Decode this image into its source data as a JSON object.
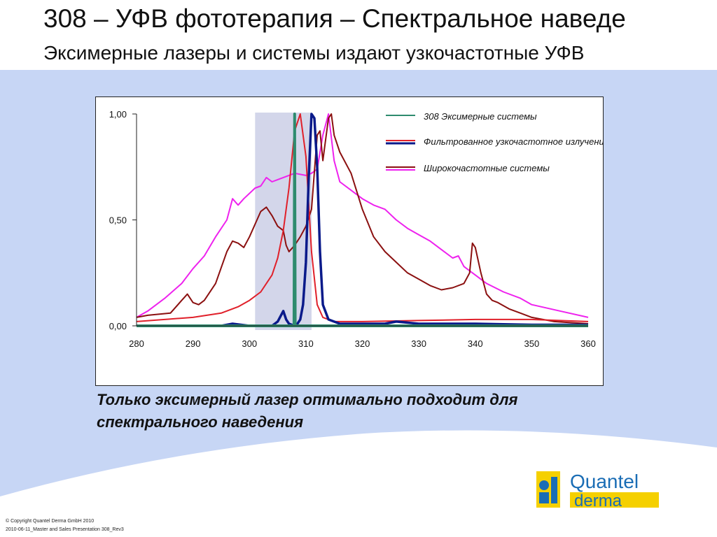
{
  "slide": {
    "title": "308 – УФВ фототерапия – Спектральное наведе",
    "subtitle": "Эксимерные лазеры и системы издают узкочастотные УФВ",
    "caption_line1": "Только эксимерный лазер оптимально подходит для",
    "caption_line2": "спектрального наведения",
    "copyright": "© Copyright Quantel Derma GmbH 2010",
    "footer_file": "2010-06-11_Master and Sales Presentation 308_Rev3",
    "logo_text_1": "Quantel",
    "logo_text_2": "derma"
  },
  "colors": {
    "background_panel": "#c7d6f5",
    "highlight_band": "#d3d6ea",
    "logo_yellow": "#f5d000",
    "logo_blue": "#1a6db5"
  },
  "chart_data": {
    "type": "line",
    "xlim": [
      280,
      360
    ],
    "ylim": [
      0,
      1
    ],
    "x_ticks": [
      "280",
      "290",
      "300",
      "310",
      "320",
      "330",
      "340",
      "350",
      "360"
    ],
    "y_ticks": [
      "0,00",
      "0,50",
      "1,00"
    ],
    "highlight_band": [
      301,
      311
    ],
    "legend_position": "top-right",
    "series": [
      {
        "name": "308 Эксимерные системы",
        "color": "#2e8b6e",
        "points": [
          [
            280,
            0
          ],
          [
            307.9,
            0
          ],
          [
            308,
            1
          ],
          [
            308.1,
            0
          ],
          [
            360,
            0
          ]
        ]
      },
      {
        "name": "Фильтрованное узкочастотное излучение",
        "color": "#e0202a",
        "points": [
          [
            280,
            0.02
          ],
          [
            285,
            0.03
          ],
          [
            290,
            0.04
          ],
          [
            295,
            0.06
          ],
          [
            298,
            0.09
          ],
          [
            300,
            0.12
          ],
          [
            302,
            0.16
          ],
          [
            304,
            0.24
          ],
          [
            305,
            0.32
          ],
          [
            306,
            0.45
          ],
          [
            307,
            0.65
          ],
          [
            308,
            0.92
          ],
          [
            309,
            1.0
          ],
          [
            310,
            0.8
          ],
          [
            311,
            0.35
          ],
          [
            312,
            0.1
          ],
          [
            313,
            0.04
          ],
          [
            315,
            0.02
          ],
          [
            320,
            0.02
          ],
          [
            330,
            0.025
          ],
          [
            340,
            0.03
          ],
          [
            350,
            0.03
          ],
          [
            360,
            0.02
          ]
        ]
      },
      {
        "name": "",
        "color": "#0a1a8a",
        "points": [
          [
            280,
            0
          ],
          [
            295,
            0
          ],
          [
            297,
            0.01
          ],
          [
            300,
            0
          ],
          [
            304,
            0
          ],
          [
            305,
            0.02
          ],
          [
            306,
            0.07
          ],
          [
            306.5,
            0.03
          ],
          [
            307,
            0.01
          ],
          [
            308,
            0
          ],
          [
            308.5,
            0.01
          ],
          [
            309,
            0.03
          ],
          [
            309.5,
            0.1
          ],
          [
            310,
            0.3
          ],
          [
            310.5,
            0.7
          ],
          [
            311,
            1.0
          ],
          [
            311.5,
            0.98
          ],
          [
            312,
            0.75
          ],
          [
            312.5,
            0.35
          ],
          [
            313,
            0.1
          ],
          [
            314,
            0.03
          ],
          [
            316,
            0.01
          ],
          [
            320,
            0.01
          ],
          [
            324,
            0.01
          ],
          [
            326,
            0.02
          ],
          [
            330,
            0.01
          ],
          [
            334,
            0.01
          ],
          [
            340,
            0.01
          ],
          [
            350,
            0.005
          ],
          [
            360,
            0.005
          ]
        ]
      },
      {
        "name": "Широкочастотные системы",
        "color": "#8b1010",
        "points": [
          [
            280,
            0.04
          ],
          [
            282,
            0.05
          ],
          [
            286,
            0.06
          ],
          [
            288,
            0.12
          ],
          [
            289,
            0.15
          ],
          [
            290,
            0.11
          ],
          [
            291,
            0.1
          ],
          [
            292,
            0.12
          ],
          [
            294,
            0.2
          ],
          [
            296,
            0.35
          ],
          [
            297,
            0.4
          ],
          [
            298,
            0.39
          ],
          [
            299,
            0.37
          ],
          [
            300,
            0.42
          ],
          [
            301,
            0.48
          ],
          [
            302,
            0.54
          ],
          [
            303,
            0.56
          ],
          [
            304,
            0.52
          ],
          [
            305,
            0.47
          ],
          [
            306,
            0.45
          ],
          [
            306.5,
            0.38
          ],
          [
            307,
            0.35
          ],
          [
            308,
            0.38
          ],
          [
            309,
            0.42
          ],
          [
            310,
            0.47
          ],
          [
            311,
            0.55
          ],
          [
            312,
            0.9
          ],
          [
            312.5,
            0.92
          ],
          [
            313,
            0.78
          ],
          [
            313.5,
            0.88
          ],
          [
            314,
            0.98
          ],
          [
            314.5,
            1.0
          ],
          [
            315,
            0.9
          ],
          [
            316,
            0.82
          ],
          [
            318,
            0.72
          ],
          [
            320,
            0.55
          ],
          [
            322,
            0.42
          ],
          [
            324,
            0.35
          ],
          [
            326,
            0.3
          ],
          [
            328,
            0.25
          ],
          [
            330,
            0.22
          ],
          [
            332,
            0.19
          ],
          [
            334,
            0.17
          ],
          [
            336,
            0.18
          ],
          [
            338,
            0.2
          ],
          [
            339,
            0.25
          ],
          [
            339.5,
            0.39
          ],
          [
            340,
            0.37
          ],
          [
            341,
            0.25
          ],
          [
            342,
            0.15
          ],
          [
            343,
            0.12
          ],
          [
            344,
            0.11
          ],
          [
            346,
            0.08
          ],
          [
            348,
            0.06
          ],
          [
            350,
            0.04
          ],
          [
            354,
            0.02
          ],
          [
            360,
            0.01
          ]
        ]
      },
      {
        "name": "",
        "color": "#ee22ee",
        "points": [
          [
            280,
            0.04
          ],
          [
            282,
            0.07
          ],
          [
            285,
            0.13
          ],
          [
            288,
            0.2
          ],
          [
            290,
            0.27
          ],
          [
            292,
            0.33
          ],
          [
            294,
            0.42
          ],
          [
            296,
            0.5
          ],
          [
            297,
            0.6
          ],
          [
            298,
            0.57
          ],
          [
            299,
            0.6
          ],
          [
            301,
            0.65
          ],
          [
            302,
            0.66
          ],
          [
            303,
            0.7
          ],
          [
            304,
            0.68
          ],
          [
            306,
            0.7
          ],
          [
            308,
            0.72
          ],
          [
            310,
            0.71
          ],
          [
            311,
            0.72
          ],
          [
            312,
            0.74
          ],
          [
            313,
            0.9
          ],
          [
            314,
            1.0
          ],
          [
            315,
            0.78
          ],
          [
            316,
            0.68
          ],
          [
            318,
            0.64
          ],
          [
            320,
            0.6
          ],
          [
            322,
            0.57
          ],
          [
            324,
            0.55
          ],
          [
            326,
            0.5
          ],
          [
            328,
            0.46
          ],
          [
            330,
            0.43
          ],
          [
            332,
            0.4
          ],
          [
            334,
            0.36
          ],
          [
            336,
            0.32
          ],
          [
            337,
            0.33
          ],
          [
            338,
            0.28
          ],
          [
            340,
            0.24
          ],
          [
            342,
            0.2
          ],
          [
            345,
            0.16
          ],
          [
            348,
            0.13
          ],
          [
            350,
            0.1
          ],
          [
            355,
            0.07
          ],
          [
            360,
            0.04
          ]
        ]
      }
    ]
  }
}
